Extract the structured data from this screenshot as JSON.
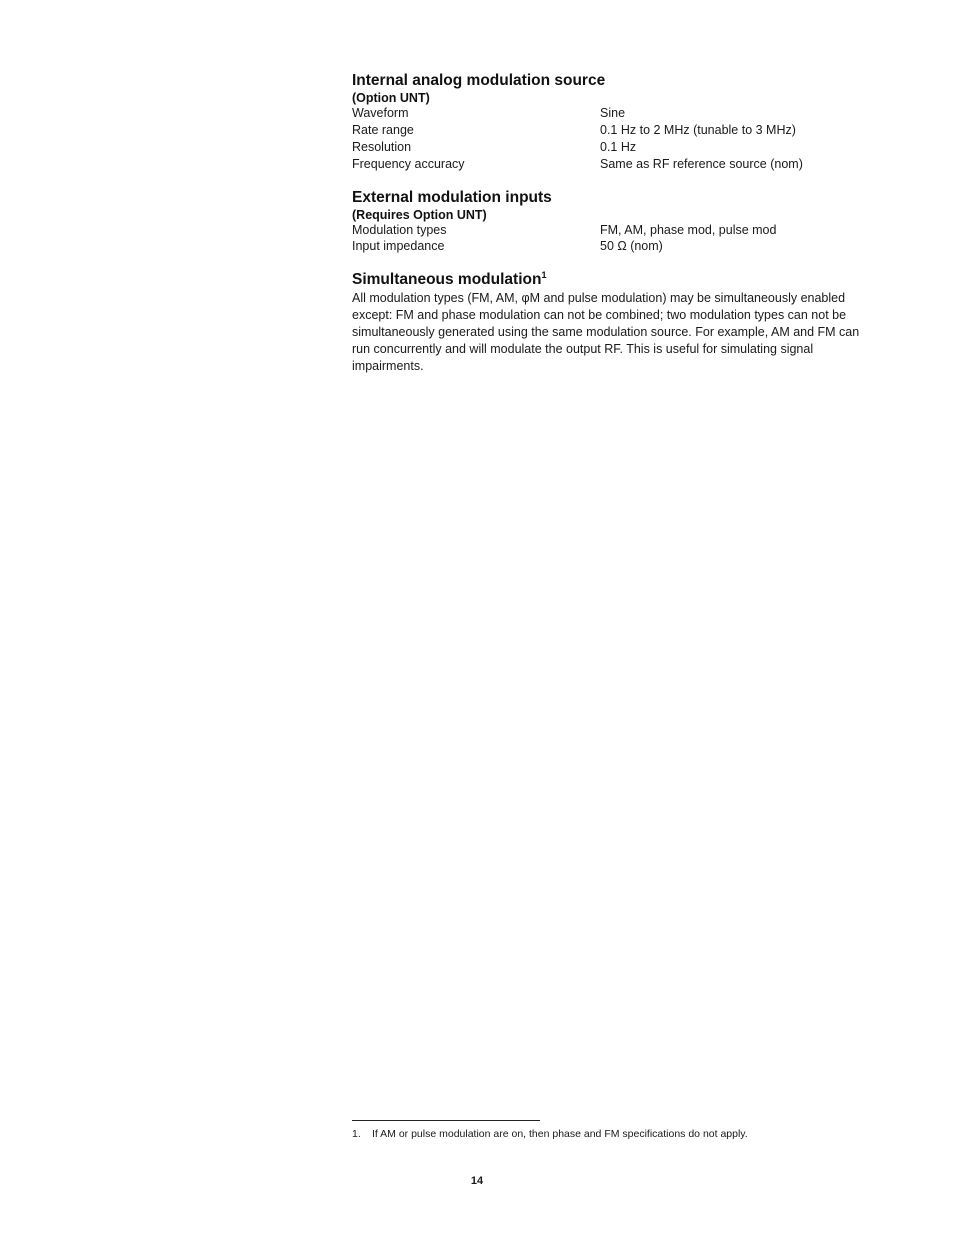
{
  "sections": {
    "internal": {
      "heading": "Internal analog modulation source",
      "sub": "(Option UNT)",
      "rows": [
        {
          "label": "Waveform",
          "value": "Sine"
        },
        {
          "label": "Rate range",
          "value": "0.1 Hz to 2 MHz (tunable to 3 MHz)"
        },
        {
          "label": "Resolution",
          "value": "0.1 Hz"
        },
        {
          "label": "Frequency accuracy",
          "value": "Same as RF reference source (nom)"
        }
      ]
    },
    "external": {
      "heading": "External modulation inputs",
      "sub": "(Requires Option UNT)",
      "rows": [
        {
          "label": "Modulation types",
          "value": "FM, AM, phase mod, pulse mod"
        },
        {
          "label": "Input impedance",
          "value": "50 Ω (nom)"
        }
      ]
    },
    "simultaneous": {
      "heading": "Simultaneous modulation",
      "sup": "1",
      "body": "All modulation types (FM, AM, φM and pulse modulation) may be simultaneously enabled except: FM and phase modulation can not be combined; two modulation types can not be simultaneously generated using the same modulation source. For example, AM and FM can run concurrently and will modulate the output RF. This is useful for simulating signal impairments."
    }
  },
  "footnote": {
    "num": "1.",
    "text": "If AM or pulse modulation are on, then phase and FM specifications do not apply."
  },
  "page_number": "14"
}
